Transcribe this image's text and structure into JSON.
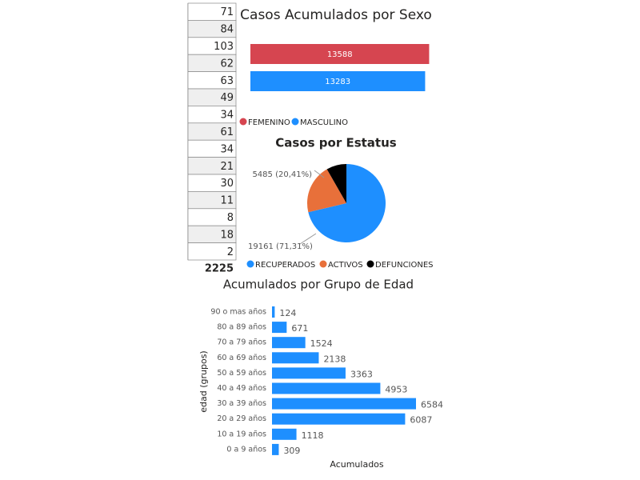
{
  "table": {
    "rows": [
      71,
      84,
      103,
      62,
      63,
      49,
      34,
      61,
      34,
      21,
      30,
      11,
      8,
      18,
      2
    ],
    "total": 2225
  },
  "chart_data": [
    {
      "type": "hbar",
      "title": "Casos Acumulados por Sexo",
      "categories": [
        null
      ],
      "series": [
        {
          "name": "FEMENINO",
          "color": "#d64550",
          "values": [
            13588
          ]
        },
        {
          "name": "MASCULINO",
          "color": "#1e8fff",
          "values": [
            13283
          ]
        }
      ]
    },
    {
      "type": "pie",
      "title": "Casos por Estatus",
      "categories": [
        "RECUPERADOS",
        "ACTIVOS",
        "DEFUNCIONES"
      ],
      "values": [
        19161,
        5485,
        2225
      ],
      "value_labels": [
        "19161 (71,31%)",
        "5485 (20,41%)",
        null
      ],
      "colors": [
        "#1e8fff",
        "#e8703a",
        "#000000"
      ]
    },
    {
      "type": "hbar-grouped",
      "title": "Acumulados por Grupo de Edad",
      "x_label": "Acumulados",
      "y_label": "edad (grupos)",
      "color": "#1e8fff",
      "categories": [
        "90 o mas años",
        "80 a 89 años",
        "70 a 79 años",
        "60 a 69 años",
        "50 a 59 años",
        "40 a 49 años",
        "30 a 39 años",
        "20 a 29 años",
        "10 a 19 años",
        "0 a 9 años"
      ],
      "values": [
        124,
        671,
        1524,
        2138,
        3363,
        4953,
        6584,
        6087,
        1118,
        309
      ]
    }
  ]
}
